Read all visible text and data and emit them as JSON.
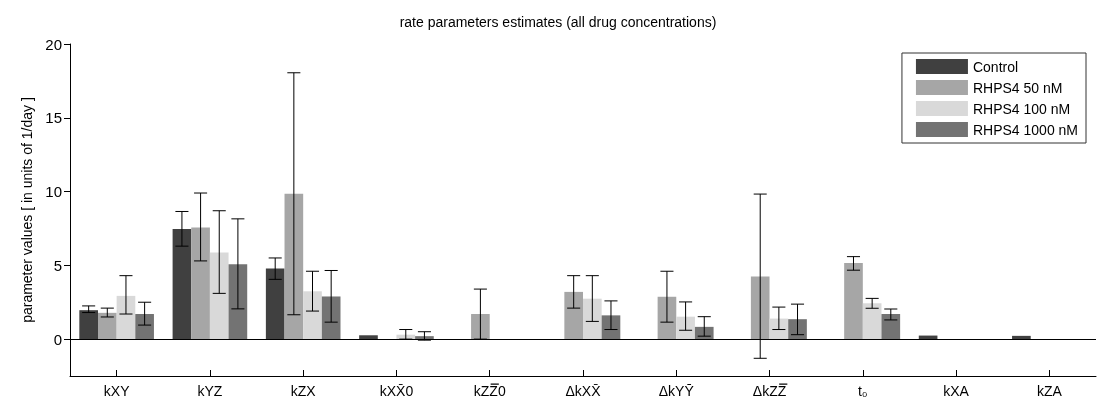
{
  "chart_data": {
    "type": "bar",
    "title": "rate parameters estimates (all drug concentrations)",
    "ylabel": "parameter values [ in units of 1/day ]",
    "categories": [
      "kXY",
      "kYZ",
      "kZX",
      "kXX̄0",
      "kZZ̿0",
      "ΔkXX̄",
      "ΔkYȲ",
      "ΔkZZ̿",
      "t₀",
      "kXA",
      "kZA"
    ],
    "series": [
      {
        "name": "Control",
        "color": "#404040",
        "values": [
          1.96,
          7.46,
          4.78,
          0.26,
          null,
          null,
          null,
          null,
          null,
          0.24,
          0.22
        ],
        "errors": [
          [
            1.8,
            2.25
          ],
          [
            6.3,
            8.65
          ],
          [
            4.05,
            5.5
          ],
          null,
          null,
          null,
          null,
          null,
          null,
          null,
          null
        ]
      },
      {
        "name": "RHPS4 50 nM",
        "color": "#a6a6a6",
        "values": [
          1.78,
          7.57,
          9.85,
          null,
          1.7,
          3.2,
          2.87,
          4.24,
          5.15,
          null,
          null
        ],
        "errors": [
          [
            1.5,
            2.1
          ],
          [
            5.3,
            9.9
          ],
          [
            1.65,
            18.05
          ],
          null,
          [
            0,
            3.39
          ],
          [
            2.1,
            4.3
          ],
          [
            1.15,
            4.6
          ],
          [
            -1.3,
            9.83
          ],
          [
            4.67,
            5.59
          ],
          null,
          null
        ]
      },
      {
        "name": "RHPS4 100 nM",
        "color": "#d9d9d9",
        "values": [
          2.93,
          5.87,
          3.24,
          0.3,
          null,
          2.74,
          1.52,
          1.39,
          2.43,
          null,
          null
        ],
        "errors": [
          [
            1.7,
            4.3
          ],
          [
            3.1,
            8.7
          ],
          [
            1.9,
            4.6
          ],
          [
            0,
            0.65
          ],
          null,
          [
            1.2,
            4.3
          ],
          [
            0.6,
            2.52
          ],
          [
            0.65,
            2.17
          ],
          [
            2.09,
            2.76
          ],
          null,
          null
        ]
      },
      {
        "name": "RHPS4 1000 nM",
        "color": "#737373",
        "values": [
          1.7,
          5.07,
          2.89,
          0.2,
          null,
          1.61,
          0.83,
          1.35,
          1.7,
          null,
          null
        ],
        "errors": [
          [
            0.95,
            2.5
          ],
          [
            2.05,
            8.15
          ],
          [
            1.15,
            4.65
          ],
          [
            -0.07,
            0.5
          ],
          null,
          [
            0.65,
            2.59
          ],
          [
            0.2,
            1.52
          ],
          [
            0.3,
            2.37
          ],
          [
            1.3,
            2.04
          ],
          null,
          null
        ]
      }
    ],
    "ylim": [
      -2.5,
      20
    ],
    "yticks": [
      0,
      5,
      10,
      15,
      20
    ],
    "legend": "top right",
    "ref_lines": [
      {
        "axis": "y",
        "value": 0,
        "color": "#000000"
      }
    ]
  }
}
